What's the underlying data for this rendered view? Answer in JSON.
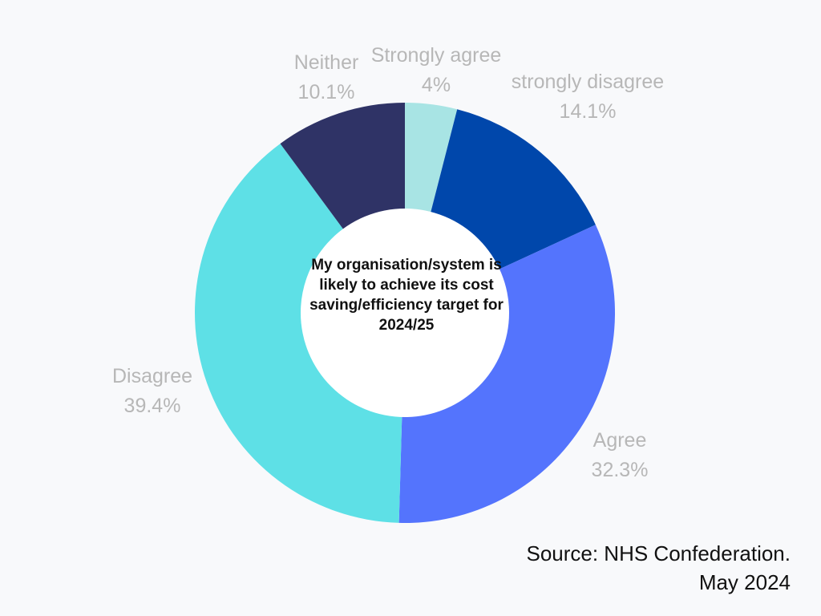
{
  "chart_data": {
    "type": "pie",
    "title": "My organisation/system is likely to achieve its cost saving/efficiency target for 2024/25",
    "slices": [
      {
        "label": "Strongly agree",
        "value": 4,
        "value_label": "4%",
        "color": "#a8e4e4"
      },
      {
        "label": "strongly disagree",
        "value": 14.1,
        "value_label": "14.1%",
        "color": "#0047ab"
      },
      {
        "label": "Agree",
        "value": 32.3,
        "value_label": "32.3%",
        "color": "#5474fd"
      },
      {
        "label": "Disagree",
        "value": 39.4,
        "value_label": "39.4%",
        "color": "#5ee0e6"
      },
      {
        "label": "Neither",
        "value": 10.1,
        "value_label": "10.1%",
        "color": "#2f3366"
      }
    ]
  },
  "source": {
    "line1": "Source: NHS Confederation.",
    "line2": "May 2024"
  }
}
